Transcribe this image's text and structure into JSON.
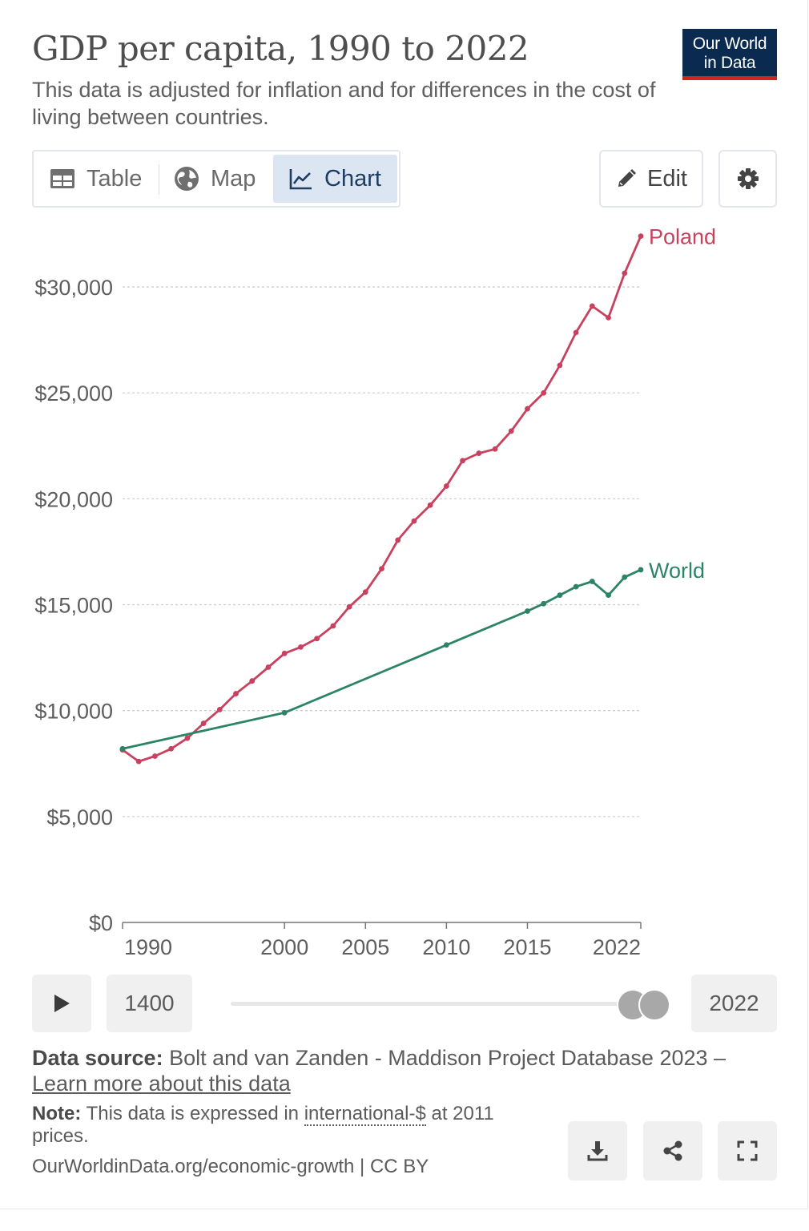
{
  "header": {
    "title": "GDP per capita, 1990 to 2022",
    "subtitle": "This data is adjusted for inflation and for differences in the cost of living between countries.",
    "logo_line1": "Our World",
    "logo_line2": "in Data",
    "logo_color": "#0a2a50",
    "logo_accent": "#ce261e"
  },
  "tabs": {
    "table_label": "Table",
    "map_label": "Map",
    "chart_label": "Chart",
    "active": "Chart"
  },
  "toolbar": {
    "edit_label": "Edit",
    "settings_icon": "gear-icon"
  },
  "chart_data": {
    "type": "line",
    "title": "GDP per capita, 1990 to 2022",
    "xlabel": "",
    "ylabel": "",
    "xlim": [
      1990,
      2022
    ],
    "ylim": [
      0,
      32500
    ],
    "x_ticks": [
      1990,
      2000,
      2005,
      2010,
      2015,
      2022
    ],
    "y_ticks": [
      0,
      5000,
      10000,
      15000,
      20000,
      25000,
      30000
    ],
    "y_tick_labels": [
      "$0",
      "$5,000",
      "$10,000",
      "$15,000",
      "$20,000",
      "$25,000",
      "$30,000"
    ],
    "grid": true,
    "legend": "inline line-end labels",
    "series": [
      {
        "name": "Poland",
        "color": "#c8415e",
        "x": [
          1990,
          1991,
          1992,
          1993,
          1994,
          1995,
          1996,
          1997,
          1998,
          1999,
          2000,
          2001,
          2002,
          2003,
          2004,
          2005,
          2006,
          2007,
          2008,
          2009,
          2010,
          2011,
          2012,
          2013,
          2014,
          2015,
          2016,
          2017,
          2018,
          2019,
          2020,
          2021,
          2022
        ],
        "values": [
          8150,
          7600,
          7850,
          8200,
          8700,
          9400,
          10050,
          10800,
          11400,
          12050,
          12700,
          13000,
          13400,
          14000,
          14900,
          15600,
          16700,
          18050,
          18950,
          19700,
          20600,
          21800,
          22150,
          22350,
          23200,
          24250,
          25000,
          26300,
          27850,
          29100,
          28550,
          30650,
          32400
        ]
      },
      {
        "name": "World",
        "color": "#2c8465",
        "x": [
          1990,
          2000,
          2010,
          2015,
          2016,
          2017,
          2018,
          2019,
          2020,
          2021,
          2022
        ],
        "values": [
          8200,
          9900,
          13100,
          14700,
          15050,
          15450,
          15850,
          16100,
          15450,
          16300,
          16650
        ]
      }
    ]
  },
  "timeline": {
    "play_icon": "play-icon",
    "start_year": "1400",
    "end_year": "2022"
  },
  "footer": {
    "source_label": "Data source:",
    "source_text": "Bolt and van Zanden - Maddison Project Database 2023 –",
    "learn_more": "Learn more about this data",
    "note_label": "Note:",
    "note_text_1": "This data is expressed in",
    "note_link": "international-$",
    "note_text_2": "at 2011 prices.",
    "url": "OurWorldinData.org/economic-growth | CC BY",
    "download_icon": "download-icon",
    "share_icon": "share-icon",
    "fullscreen_icon": "fullscreen-icon"
  }
}
